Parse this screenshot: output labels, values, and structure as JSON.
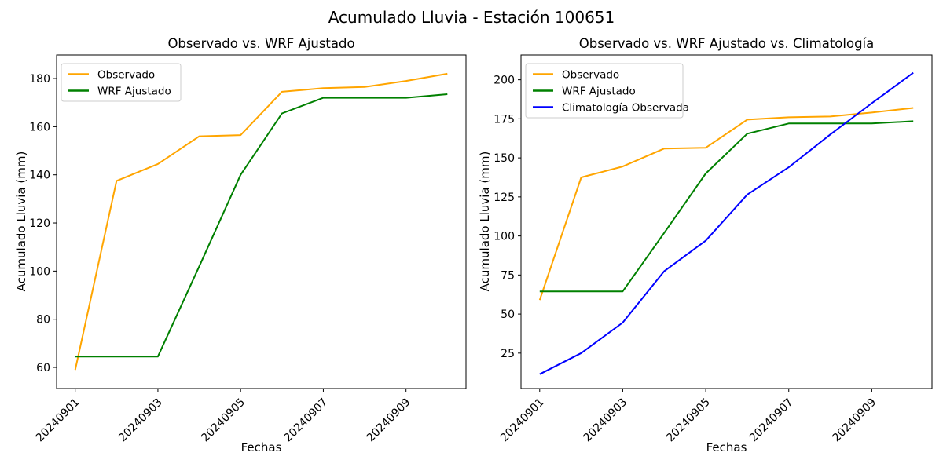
{
  "figure": {
    "suptitle": "Acumulado Lluvia - Estación 100651",
    "background": "#ffffff"
  },
  "colors": {
    "observado": "#FFA500",
    "wrf_ajustado": "#008000",
    "climatologia": "#0000FF",
    "axes": "#000000",
    "legend_border": "#cccccc"
  },
  "chart_data": [
    {
      "type": "line",
      "title": "Observado vs. WRF Ajustado",
      "xlabel": "Fechas",
      "ylabel": "Acumulado Lluvia (mm)",
      "categories": [
        "20240901",
        "20240902",
        "20240903",
        "20240904",
        "20240905",
        "20240906",
        "20240907",
        "20240908",
        "20240909",
        "20240910"
      ],
      "xtick_labels": [
        "20240901",
        "20240903",
        "20240905",
        "20240907",
        "20240909"
      ],
      "yticks": [
        60,
        80,
        100,
        120,
        140,
        160,
        180
      ],
      "ylim": [
        51.2,
        189.8
      ],
      "grid": false,
      "legend_position": "upper left",
      "series": [
        {
          "name": "Observado",
          "color": "#FFA500",
          "values": [
            59,
            137.5,
            144.5,
            156,
            156.5,
            174.5,
            176,
            176.5,
            179,
            182
          ]
        },
        {
          "name": "WRF Ajustado",
          "color": "#008000",
          "values": [
            64.5,
            64.5,
            64.5,
            102,
            140,
            165.5,
            172,
            172,
            172,
            173.5
          ]
        }
      ]
    },
    {
      "type": "line",
      "title": "Observado vs. WRF Ajustado vs. Climatología",
      "xlabel": "Fechas",
      "ylabel": "Acumulado Lluvia (mm)",
      "categories": [
        "20240901",
        "20240902",
        "20240903",
        "20240904",
        "20240905",
        "20240906",
        "20240907",
        "20240908",
        "20240909",
        "20240910"
      ],
      "xtick_labels": [
        "20240901",
        "20240903",
        "20240905",
        "20240907",
        "20240909"
      ],
      "yticks": [
        25,
        50,
        75,
        100,
        125,
        150,
        175,
        200
      ],
      "ylim": [
        2.3,
        215.9
      ],
      "grid": false,
      "legend_position": "upper left",
      "series": [
        {
          "name": "Observado",
          "color": "#FFA500",
          "values": [
            59,
            137.5,
            144.5,
            156,
            156.5,
            174.5,
            176,
            176.5,
            179,
            182
          ]
        },
        {
          "name": "WRF Ajustado",
          "color": "#008000",
          "values": [
            64.5,
            64.5,
            64.5,
            102,
            140,
            165.5,
            172,
            172,
            172,
            173.5
          ]
        },
        {
          "name": "Climatología Observada",
          "color": "#0000FF",
          "values": [
            11.5,
            25,
            44.5,
            77.5,
            97,
            126.5,
            144,
            165,
            185,
            204.5
          ]
        }
      ]
    }
  ]
}
